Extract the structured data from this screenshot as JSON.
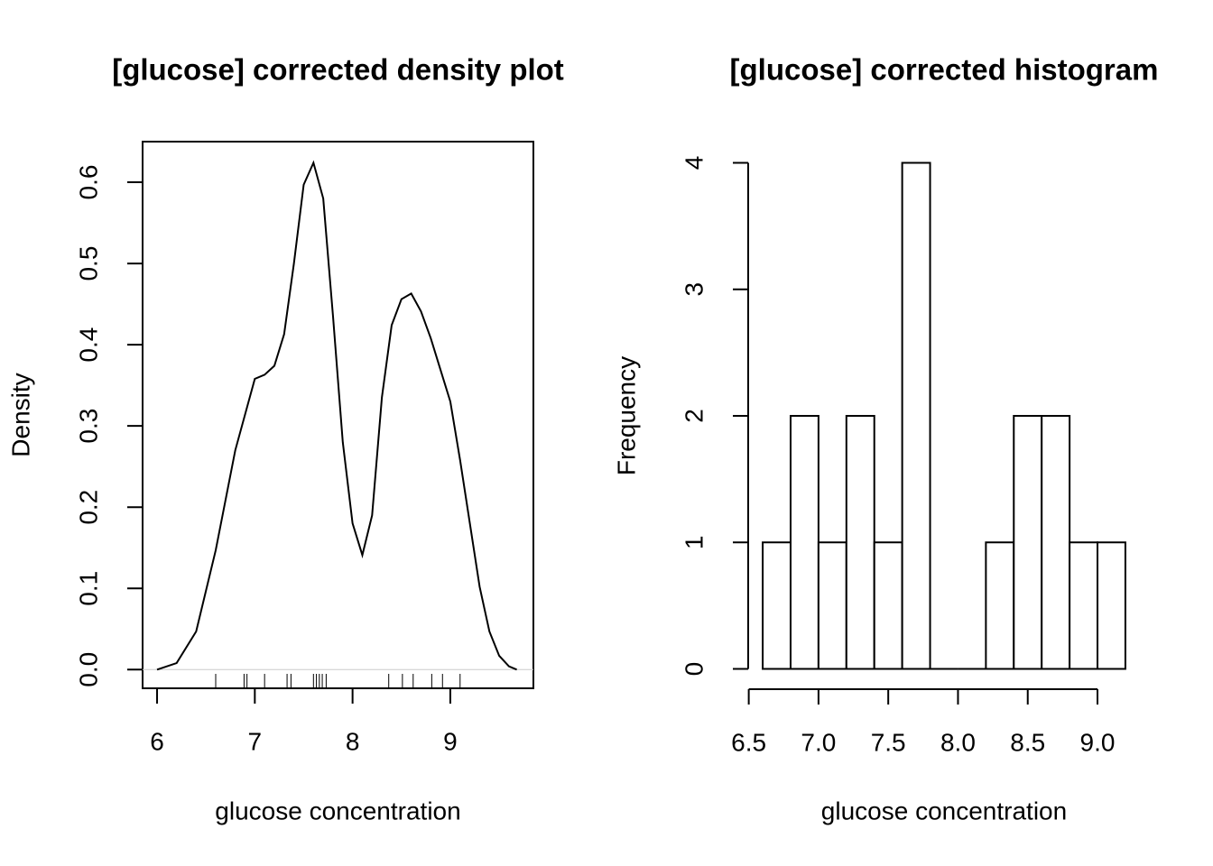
{
  "chart_data": [
    {
      "type": "line",
      "title": "[glucose] corrected density plot",
      "xlabel": "glucose concentration",
      "ylabel": "Density",
      "x": [
        6.0,
        6.2,
        6.4,
        6.6,
        6.8,
        7.0,
        7.1,
        7.2,
        7.3,
        7.4,
        7.5,
        7.6,
        7.7,
        7.8,
        7.9,
        8.0,
        8.1,
        8.2,
        8.3,
        8.4,
        8.5,
        8.6,
        8.7,
        8.8,
        8.9,
        9.0,
        9.1,
        9.2,
        9.3,
        9.4,
        9.5,
        9.6,
        9.68
      ],
      "values": [
        0.0,
        0.008,
        0.047,
        0.147,
        0.27,
        0.358,
        0.363,
        0.374,
        0.413,
        0.5,
        0.597,
        0.624,
        0.58,
        0.435,
        0.28,
        0.18,
        0.141,
        0.19,
        0.335,
        0.424,
        0.456,
        0.463,
        0.441,
        0.408,
        0.369,
        0.33,
        0.258,
        0.18,
        0.102,
        0.047,
        0.017,
        0.004,
        0.0
      ],
      "rug": [
        6.6,
        6.89,
        6.92,
        7.1,
        7.33,
        7.37,
        7.6,
        7.63,
        7.66,
        7.69,
        7.73,
        8.37,
        8.51,
        8.62,
        8.81,
        8.92,
        9.1
      ],
      "color": "#000000",
      "xlim": [
        5.852,
        9.85
      ],
      "ylim": [
        -0.023,
        0.65
      ],
      "xticks": [
        6,
        7,
        8,
        9
      ],
      "yticks": [
        {
          "value": 0,
          "label": "0.0"
        },
        0.1,
        0.2,
        0.3,
        0.4,
        0.5,
        0.6
      ]
    },
    {
      "type": "histogram",
      "title": "[glucose] corrected histogram",
      "xlabel": "glucose concentration",
      "ylabel": "Frequency",
      "bins": [
        6.6,
        6.8,
        7.0,
        7.2,
        7.4,
        7.6,
        7.8,
        8.0,
        8.2,
        8.4,
        8.6,
        8.8,
        9.0,
        9.2
      ],
      "values": [
        1,
        2,
        1,
        2,
        1,
        4,
        0,
        0,
        1,
        2,
        2,
        1,
        1
      ],
      "color": "#ffffff",
      "xlim": [
        6.496,
        9.304
      ],
      "ylim": [
        -0.16,
        4.16
      ],
      "xticks": [
        6.5,
        {
          "value": 7,
          "label": "7.0"
        },
        7.5,
        {
          "value": 8,
          "label": "8.0"
        },
        8.5,
        {
          "value": 9,
          "label": "9.0"
        }
      ],
      "yticks": [
        0,
        1,
        2,
        3,
        4
      ]
    }
  ]
}
